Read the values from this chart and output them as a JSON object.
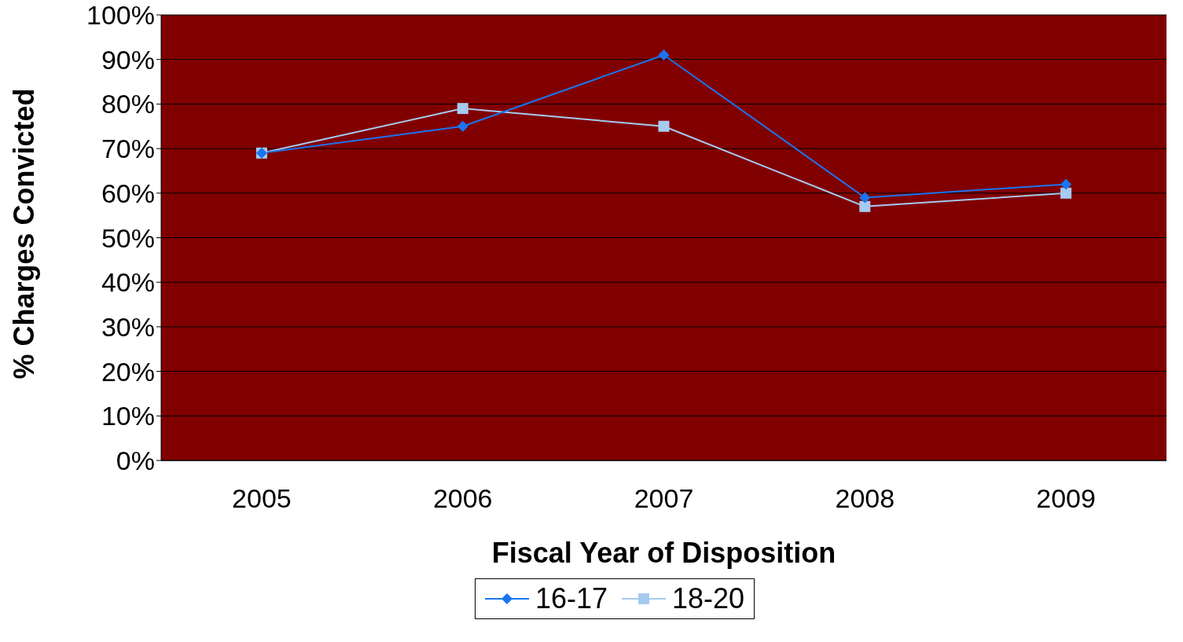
{
  "chart_data": {
    "type": "line",
    "xlabel": "Fiscal Year of Disposition",
    "ylabel": "% Charges Convicted",
    "categories": [
      "2005",
      "2006",
      "2007",
      "2008",
      "2009"
    ],
    "series": [
      {
        "name": "16-17",
        "color": "#1a75f0",
        "marker": "diamond",
        "values": [
          69,
          75,
          91,
          59,
          62
        ]
      },
      {
        "name": "18-20",
        "color": "#a6caf0",
        "marker": "square",
        "values": [
          69,
          79,
          75,
          57,
          60
        ]
      }
    ],
    "ylim": [
      0,
      100
    ],
    "yticks": [
      {
        "value": 0,
        "label": "0%"
      },
      {
        "value": 10,
        "label": "10%"
      },
      {
        "value": 20,
        "label": "20%"
      },
      {
        "value": 30,
        "label": "30%"
      },
      {
        "value": 40,
        "label": "40%"
      },
      {
        "value": 50,
        "label": "50%"
      },
      {
        "value": 60,
        "label": "60%"
      },
      {
        "value": 70,
        "label": "70%"
      },
      {
        "value": 80,
        "label": "80%"
      },
      {
        "value": 90,
        "label": "90%"
      },
      {
        "value": 100,
        "label": "100%"
      }
    ],
    "grid": "y",
    "legend": "bottom",
    "line_style": "solid"
  }
}
